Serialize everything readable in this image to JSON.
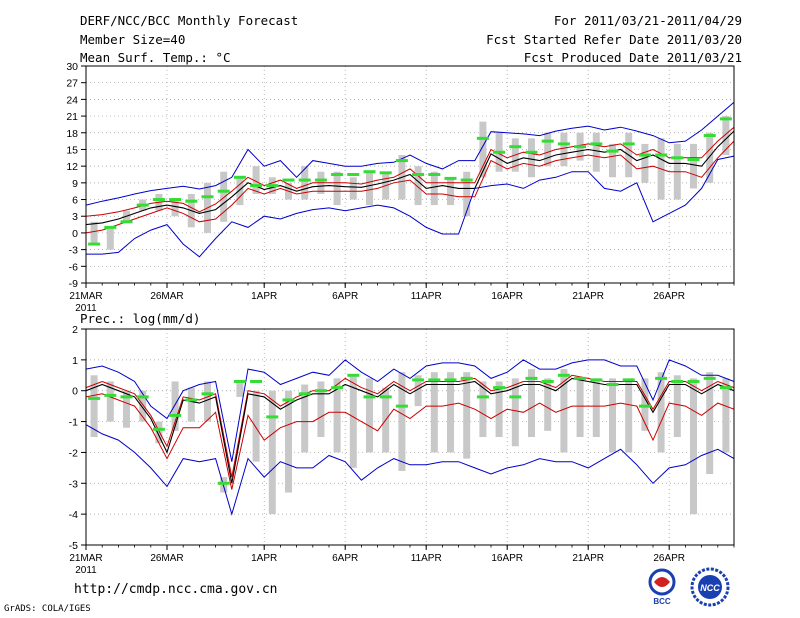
{
  "header": {
    "title": "DERF/NCC/BCC Monthly Forecast",
    "member_size": "Member Size=40",
    "variable": "Mean Surf. Temp.: °C",
    "period": "For 2011/03/21-2011/04/29",
    "start_date": "Fcst Started Refer Date 2011/03/20",
    "produced_date": "Fcst Produced Date 2011/03/21"
  },
  "footer": {
    "url": "http://cmdp.ncc.cma.gov.cn",
    "grads": "GrADS: COLA/IGES",
    "logo_left_text": "BCC",
    "logo_right_text": "NCC"
  },
  "colors": {
    "envelope": "#0000cc",
    "spread": "#cc0000",
    "mean": "#000000",
    "median": "#33dd33",
    "box": "#c8c8c8"
  },
  "chart_data": [
    {
      "type": "ensemble-boxplot-line",
      "title": "Mean Surf. Temp.: °C",
      "ylabel": "°C",
      "ylim": [
        -9,
        30
      ],
      "yticks": [
        -9,
        -6,
        -3,
        0,
        3,
        6,
        9,
        12,
        15,
        18,
        21,
        24,
        27,
        30
      ],
      "x_days": 40,
      "xticks": [
        {
          "day": 0,
          "label": "21MAR",
          "sub": "2011"
        },
        {
          "day": 5,
          "label": "26MAR"
        },
        {
          "day": 11,
          "label": "1APR"
        },
        {
          "day": 16,
          "label": "6APR"
        },
        {
          "day": 21,
          "label": "11APR"
        },
        {
          "day": 26,
          "label": "16APR"
        },
        {
          "day": 31,
          "label": "21APR"
        },
        {
          "day": 36,
          "label": "26APR"
        }
      ],
      "series": [
        {
          "name": "max",
          "values": [
            5,
            5.7,
            6.3,
            7,
            7.6,
            8,
            8.4,
            7.9,
            8.5,
            10,
            15,
            12,
            13,
            10,
            13,
            12.5,
            12,
            12,
            12.5,
            12.7,
            14,
            12.5,
            11.5,
            13,
            13,
            18.2,
            18,
            17.8,
            17.5,
            18.3,
            18.8,
            19.2,
            18.5,
            19,
            18.3,
            17.5,
            16.2,
            16.5,
            18.5,
            21,
            23.5
          ]
        },
        {
          "name": "upper",
          "values": [
            3,
            3.3,
            3.8,
            4.5,
            5.3,
            5.7,
            5.3,
            3.8,
            5.2,
            7.5,
            10,
            8.5,
            9.5,
            8,
            9,
            9,
            9,
            8.8,
            9.5,
            10,
            11.5,
            9,
            9,
            9,
            9,
            15,
            13.5,
            14.5,
            14,
            15,
            15.5,
            16,
            15.5,
            16,
            14,
            15,
            13.5,
            13.5,
            13.5,
            16.5,
            19
          ]
        },
        {
          "name": "mean",
          "values": [
            1.5,
            1.8,
            2.5,
            3.5,
            4.5,
            5,
            4.5,
            3.5,
            4.2,
            6.5,
            9,
            7.8,
            8.5,
            7.5,
            8.3,
            8.5,
            8.3,
            8.2,
            8.8,
            9.5,
            10.5,
            8,
            8.5,
            8,
            8,
            14.2,
            12.5,
            13.5,
            13,
            14,
            14.5,
            15,
            14.5,
            15,
            13,
            14,
            12.5,
            12.5,
            12,
            15.5,
            18.3
          ]
        },
        {
          "name": "lower",
          "values": [
            0,
            0.5,
            1.5,
            2.5,
            3.5,
            4.5,
            3.5,
            2,
            2.5,
            5,
            8,
            7,
            8,
            7,
            7.5,
            7.5,
            7.5,
            7.5,
            8,
            9,
            9.5,
            7,
            7,
            6.5,
            6.5,
            13,
            11.5,
            12.5,
            12,
            13,
            13.5,
            14,
            13.5,
            14,
            11.5,
            12,
            11,
            11,
            10,
            13.5,
            16.5
          ]
        },
        {
          "name": "min",
          "values": [
            -3.8,
            -3.8,
            -3.5,
            -1,
            0.5,
            1.5,
            -2,
            -4.3,
            -1,
            2,
            1,
            3,
            2.5,
            3.5,
            4.2,
            4.5,
            4,
            4.5,
            5,
            4.5,
            3,
            1,
            -0.2,
            -0.2,
            8,
            8.5,
            8.8,
            8,
            9.5,
            10,
            11,
            11,
            8,
            7.5,
            9,
            2,
            3.5,
            5,
            8,
            13.2,
            13.8
          ]
        }
      ],
      "medians": [
        -2,
        1,
        2,
        5,
        6,
        6,
        5.7,
        6.5,
        7.5,
        10,
        8.5,
        8.5,
        9.5,
        9.5,
        9.5,
        10.5,
        10.5,
        11,
        10.8,
        13,
        10.5,
        10.5,
        9.8,
        9.5,
        17,
        14.5,
        15.5,
        14.5,
        16.5,
        16,
        15.5,
        16,
        14.7,
        16,
        14,
        14,
        13.5,
        13.2,
        17.5,
        20.5
      ],
      "boxes": [
        [
          -2,
          2
        ],
        [
          -3,
          1
        ],
        [
          2,
          4
        ],
        [
          4,
          6
        ],
        [
          4,
          7
        ],
        [
          3,
          6
        ],
        [
          1,
          7
        ],
        [
          0,
          9
        ],
        [
          2,
          11
        ],
        [
          5,
          10
        ],
        [
          7,
          12
        ],
        [
          7,
          10
        ],
        [
          6,
          9
        ],
        [
          6,
          12
        ],
        [
          7,
          11
        ],
        [
          5,
          11
        ],
        [
          6,
          10
        ],
        [
          5,
          11
        ],
        [
          6,
          11
        ],
        [
          6,
          14
        ],
        [
          5,
          12
        ],
        [
          5,
          11
        ],
        [
          5,
          10
        ],
        [
          3,
          11
        ],
        [
          10,
          20
        ],
        [
          11,
          18
        ],
        [
          11,
          17
        ],
        [
          10,
          17
        ],
        [
          12,
          18
        ],
        [
          12,
          18
        ],
        [
          13,
          18
        ],
        [
          11,
          18
        ],
        [
          10,
          16
        ],
        [
          10,
          18
        ],
        [
          9,
          16
        ],
        [
          6,
          17
        ],
        [
          6,
          16
        ],
        [
          8,
          16
        ],
        [
          9,
          18
        ],
        [
          14,
          21
        ]
      ]
    },
    {
      "type": "ensemble-boxplot-line",
      "title": "Prec.: log(mm/d)",
      "ylabel": "log(mm/d)",
      "ylim": [
        -5,
        2
      ],
      "yticks": [
        -5,
        -4,
        -3,
        -2,
        -1,
        0,
        1,
        2
      ],
      "x_days": 40,
      "xticks": [
        {
          "day": 0,
          "label": "21MAR",
          "sub": "2011"
        },
        {
          "day": 5,
          "label": "26MAR"
        },
        {
          "day": 11,
          "label": "1APR"
        },
        {
          "day": 16,
          "label": "6APR"
        },
        {
          "day": 21,
          "label": "11APR"
        },
        {
          "day": 26,
          "label": "16APR"
        },
        {
          "day": 31,
          "label": "21APR"
        },
        {
          "day": 36,
          "label": "26APR"
        }
      ],
      "series": [
        {
          "name": "max",
          "values": [
            0.7,
            0.8,
            0.6,
            0.3,
            -0.5,
            -0.9,
            0,
            0.2,
            0.3,
            -2.3,
            0.7,
            0.6,
            0.2,
            0.4,
            0.6,
            0.5,
            1,
            0.6,
            0.3,
            0.7,
            0.4,
            0.8,
            0.9,
            0.9,
            0.8,
            0.4,
            0.6,
            1,
            0.7,
            0.7,
            0.9,
            1,
            1,
            0.8,
            0.8,
            -0.3,
            1,
            0.8,
            0.5,
            0.5,
            0.3
          ]
        },
        {
          "name": "upper",
          "values": [
            0.1,
            0.3,
            0.1,
            -0.1,
            -0.8,
            -1.8,
            -0.2,
            -0.3,
            -0.1,
            -2.8,
            0,
            -0.1,
            -0.5,
            -0.2,
            0,
            0,
            0.4,
            0.1,
            -0.1,
            0.3,
            0,
            0.3,
            0.3,
            0.3,
            0.4,
            0,
            0.1,
            0.3,
            0.3,
            0.1,
            0.5,
            0.4,
            0.3,
            0.3,
            0.3,
            -0.6,
            0.3,
            0.3,
            0,
            0.3,
            0.1
          ]
        },
        {
          "name": "mean",
          "values": [
            0,
            0.2,
            0,
            -0.2,
            -0.9,
            -2,
            -0.3,
            -0.4,
            -0.2,
            -3,
            -0.1,
            -0.2,
            -0.6,
            -0.3,
            -0.1,
            -0.1,
            0.2,
            0,
            -0.2,
            0.2,
            -0.1,
            0.2,
            0.2,
            0.2,
            0.3,
            -0.1,
            0,
            0.2,
            0.2,
            0,
            0.4,
            0.3,
            0.2,
            0.2,
            0.2,
            -0.7,
            0.2,
            0.2,
            -0.1,
            0.2,
            0
          ]
        },
        {
          "name": "lower",
          "values": [
            -0.2,
            -0.1,
            -0.3,
            -0.5,
            -1.2,
            -2.2,
            -1.2,
            -1.2,
            -0.7,
            -3.2,
            -0.8,
            -1.6,
            -1.2,
            -1,
            -1,
            -0.7,
            -0.7,
            -1,
            -1.3,
            -0.6,
            -0.9,
            -0.5,
            -0.5,
            -0.4,
            -0.6,
            -0.9,
            -0.6,
            -0.7,
            -0.4,
            -0.7,
            -0.5,
            -0.5,
            -0.5,
            -0.4,
            -0.5,
            -1.6,
            -0.4,
            -0.5,
            -0.8,
            -0.4,
            -0.6
          ]
        },
        {
          "name": "min",
          "values": [
            -1.1,
            -1.4,
            -1.6,
            -2,
            -2.5,
            -3.1,
            -2.2,
            -2.3,
            -2.2,
            -4,
            -2.2,
            -2.8,
            -2.3,
            -2.5,
            -2.5,
            -2.1,
            -2.3,
            -2.9,
            -2.5,
            -2.2,
            -2.4,
            -2.4,
            -2.3,
            -2.3,
            -2.5,
            -2.7,
            -2.5,
            -2.4,
            -2.2,
            -2.3,
            -2.3,
            -2.5,
            -2.2,
            -1.9,
            -2.4,
            -3,
            -2.5,
            -2.4,
            -2.1,
            -1.9,
            -2.2
          ]
        }
      ],
      "medians": [
        -0.25,
        -0.15,
        -0.2,
        -0.2,
        -1.25,
        -0.8,
        -0.3,
        -0.1,
        -3,
        0.3,
        0.3,
        -0.85,
        -0.3,
        -0.1,
        0,
        0.1,
        0.5,
        -0.2,
        -0.2,
        -0.5,
        0.35,
        0.35,
        0.35,
        0.4,
        -0.2,
        0.1,
        -0.2,
        0.4,
        0.3,
        0.5,
        0.4,
        0.35,
        0.2,
        0.35,
        -0.5,
        0.4,
        0.3,
        0.3,
        0.4,
        0.1
      ],
      "boxes": [
        [
          -1.5,
          0.5
        ],
        [
          -1,
          0.3
        ],
        [
          -1.2,
          0
        ],
        [
          -1,
          0
        ],
        [
          -1.7,
          -1
        ],
        [
          -1.3,
          0.3
        ],
        [
          -1,
          0.1
        ],
        [
          -1,
          0.3
        ],
        [
          -3.3,
          -2.8
        ],
        [
          -0.2,
          0.3
        ],
        [
          -2.3,
          0
        ],
        [
          -4,
          0
        ],
        [
          -3.3,
          0
        ],
        [
          -2,
          0.2
        ],
        [
          -1.5,
          0.3
        ],
        [
          -2,
          0.4
        ],
        [
          -2.5,
          0.5
        ],
        [
          -2,
          0.4
        ],
        [
          -2,
          0.1
        ],
        [
          -2.6,
          0.6
        ],
        [
          -0.5,
          0.5
        ],
        [
          -2,
          0.6
        ],
        [
          -2,
          0.6
        ],
        [
          -2.2,
          0.6
        ],
        [
          -1.5,
          0.3
        ],
        [
          -1.5,
          0.3
        ],
        [
          -1.8,
          0.4
        ],
        [
          -1.5,
          0.7
        ],
        [
          -1.3,
          0.4
        ],
        [
          -2,
          0.7
        ],
        [
          -1.5,
          0.4
        ],
        [
          -1.5,
          0.4
        ],
        [
          -2,
          0.4
        ],
        [
          -2,
          0.4
        ],
        [
          -1.3,
          0.4
        ],
        [
          -2,
          0.6
        ],
        [
          -1.5,
          0.5
        ],
        [
          -4,
          0.4
        ],
        [
          -2.7,
          0.6
        ],
        [
          -2,
          0.4
        ]
      ]
    }
  ]
}
